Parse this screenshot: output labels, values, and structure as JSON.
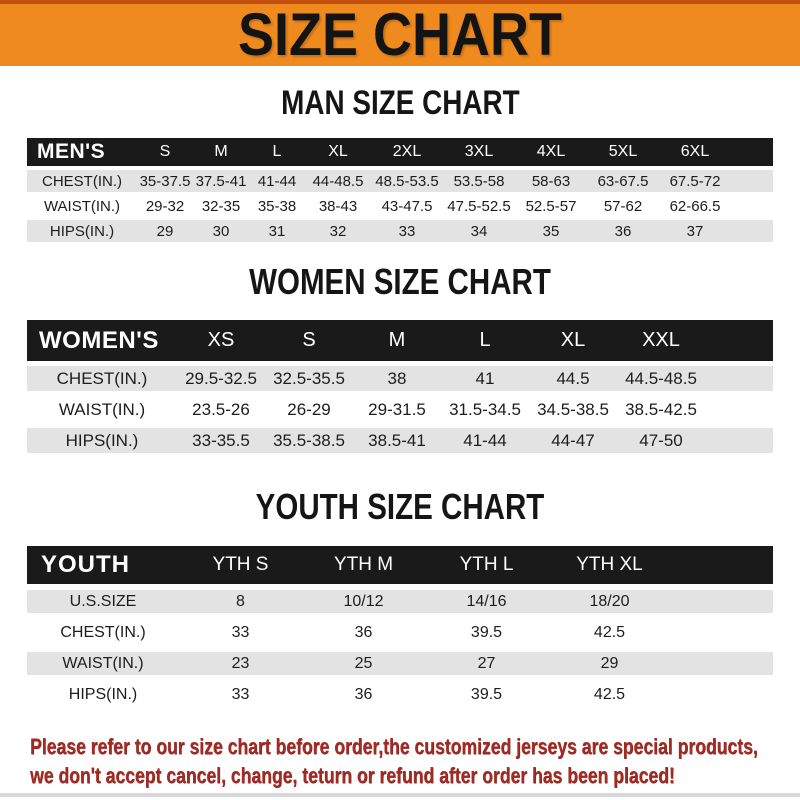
{
  "banner": {
    "title": "SIZE CHART"
  },
  "colors": {
    "banner_bg": "#ef8a1f",
    "banner_top_border": "#c24f10",
    "table_bar_bg": "#1a1a1a",
    "table_bar_text": "#ffffff",
    "row_shade_bg": "#e3e3e3",
    "notice_text": "#a22b24"
  },
  "sections": {
    "man": {
      "heading": "MAN SIZE CHART",
      "header": {
        "label": "MEN'S",
        "cols": [
          "S",
          "M",
          "L",
          "XL",
          "2XL",
          "3XL",
          "4XL",
          "5XL",
          "6XL"
        ]
      },
      "rows": [
        {
          "label": "CHEST(IN.)",
          "values": [
            "35-37.5",
            "37.5-41",
            "41-44",
            "44-48.5",
            "48.5-53.5",
            "53.5-58",
            "58-63",
            "63-67.5",
            "67.5-72"
          ]
        },
        {
          "label": "WAIST(IN.)",
          "values": [
            "29-32",
            "32-35",
            "35-38",
            "38-43",
            "43-47.5",
            "47.5-52.5",
            "52.5-57",
            "57-62",
            "62-66.5"
          ]
        },
        {
          "label": "HIPS(IN.)",
          "values": [
            "29",
            "30",
            "31",
            "32",
            "33",
            "34",
            "35",
            "36",
            "37"
          ]
        }
      ]
    },
    "women": {
      "heading": "WOMEN SIZE CHART",
      "header": {
        "label": "WOMEN'S",
        "cols": [
          "XS",
          "S",
          "M",
          "L",
          "XL",
          "XXL"
        ]
      },
      "rows": [
        {
          "label": "CHEST(IN.)",
          "values": [
            "29.5-32.5",
            "32.5-35.5",
            "38",
            "41",
            "44.5",
            "44.5-48.5"
          ]
        },
        {
          "label": "WAIST(IN.)",
          "values": [
            "23.5-26",
            "26-29",
            "29-31.5",
            "31.5-34.5",
            "34.5-38.5",
            "38.5-42.5"
          ]
        },
        {
          "label": "HIPS(IN.)",
          "values": [
            "33-35.5",
            "35.5-38.5",
            "38.5-41",
            "41-44",
            "44-47",
            "47-50"
          ]
        }
      ]
    },
    "youth": {
      "heading": "YOUTH SIZE CHART",
      "header": {
        "label": "YOUTH",
        "cols": [
          "YTH S",
          "YTH M",
          "YTH L",
          "YTH XL"
        ]
      },
      "rows": [
        {
          "label": "U.S.SIZE",
          "values": [
            "8",
            "10/12",
            "14/16",
            "18/20"
          ]
        },
        {
          "label": "CHEST(IN.)",
          "values": [
            "33",
            "36",
            "39.5",
            "42.5"
          ]
        },
        {
          "label": "WAIST(IN.)",
          "values": [
            "23",
            "25",
            "27",
            "29"
          ]
        },
        {
          "label": "HIPS(IN.)",
          "values": [
            "33",
            "36",
            "39.5",
            "42.5"
          ]
        }
      ]
    }
  },
  "footer": {
    "line1": "Please refer to our size chart before order,the customized jerseys are special products,",
    "line2": "we don't accept cancel, change, teturn or refund after order has been placed!"
  }
}
